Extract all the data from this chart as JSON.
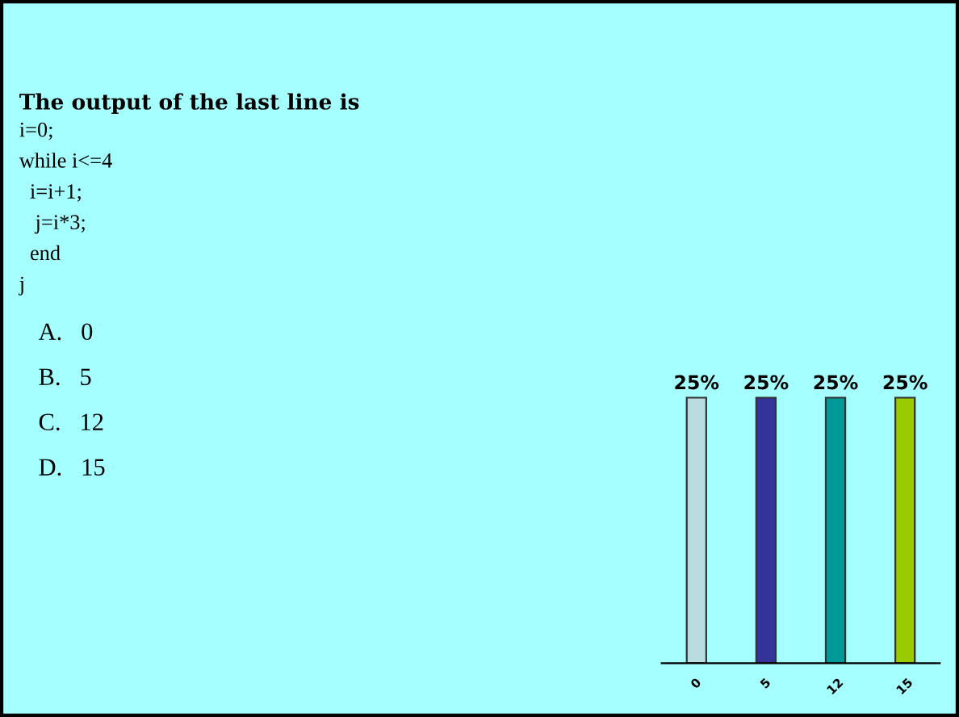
{
  "chart_data": {
    "type": "bar",
    "title": "The output of the last line is",
    "annotations": [
      "i=0;",
      "while i<=4",
      "  i=i+1;",
      "   j=i*3;",
      "  end",
      "j",
      "A.   0",
      "B.   5",
      "C.   12",
      "D.   15"
    ],
    "categories": [
      "0",
      "5",
      "12",
      "15"
    ],
    "values": [
      25,
      25,
      25,
      25
    ],
    "colors": [
      "#b8dce0",
      "#333399",
      "#009999",
      "#99cc00"
    ],
    "value_labels": [
      "25%",
      "25%",
      "25%",
      "25%"
    ],
    "grid": false,
    "legend": false
  }
}
